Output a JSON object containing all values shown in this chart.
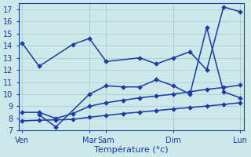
{
  "background_color": "#cce8e8",
  "grid_color": "#aacfcf",
  "line_color": "#1a3aaa",
  "ylim": [
    7,
    17.5
  ],
  "yticks": [
    7,
    8,
    9,
    10,
    11,
    12,
    13,
    14,
    15,
    16,
    17
  ],
  "xlabel": "Température (°c)",
  "xlabel_color": "#1a3aaa",
  "xtick_labels": [
    "Ven",
    "Mar",
    "Sam",
    "Dim",
    "Lun"
  ],
  "xtick_positions": [
    0,
    4,
    5,
    9,
    13
  ],
  "vline_positions": [
    0,
    4,
    9,
    13
  ],
  "xlim": [
    -0.2,
    13.2
  ],
  "line1_x": [
    0,
    1,
    3,
    4,
    5,
    7,
    8,
    9,
    10,
    11,
    12,
    13
  ],
  "line1_y": [
    14.2,
    12.3,
    14.1,
    14.6,
    12.7,
    13.0,
    12.5,
    13.0,
    13.5,
    12.0,
    17.2,
    16.8
  ],
  "line2_x": [
    1,
    2,
    4,
    5,
    6,
    7,
    8,
    9,
    10,
    11,
    12,
    13
  ],
  "line2_y": [
    8.3,
    7.3,
    10.0,
    10.7,
    10.6,
    10.6,
    11.2,
    10.7,
    10.0,
    15.5,
    10.2,
    9.7
  ],
  "line3_x": [
    0,
    1,
    2,
    3,
    4,
    5,
    6,
    7,
    8,
    9,
    10,
    11,
    12,
    13
  ],
  "line3_y": [
    8.5,
    8.5,
    8.0,
    8.4,
    9.0,
    9.3,
    9.5,
    9.7,
    9.85,
    10.0,
    10.2,
    10.4,
    10.55,
    10.75
  ],
  "line4_x": [
    0,
    1,
    2,
    3,
    4,
    5,
    6,
    7,
    8,
    9,
    10,
    11,
    12,
    13
  ],
  "line4_y": [
    7.8,
    7.85,
    7.88,
    7.92,
    8.1,
    8.25,
    8.4,
    8.52,
    8.65,
    8.78,
    8.9,
    9.02,
    9.15,
    9.3
  ]
}
